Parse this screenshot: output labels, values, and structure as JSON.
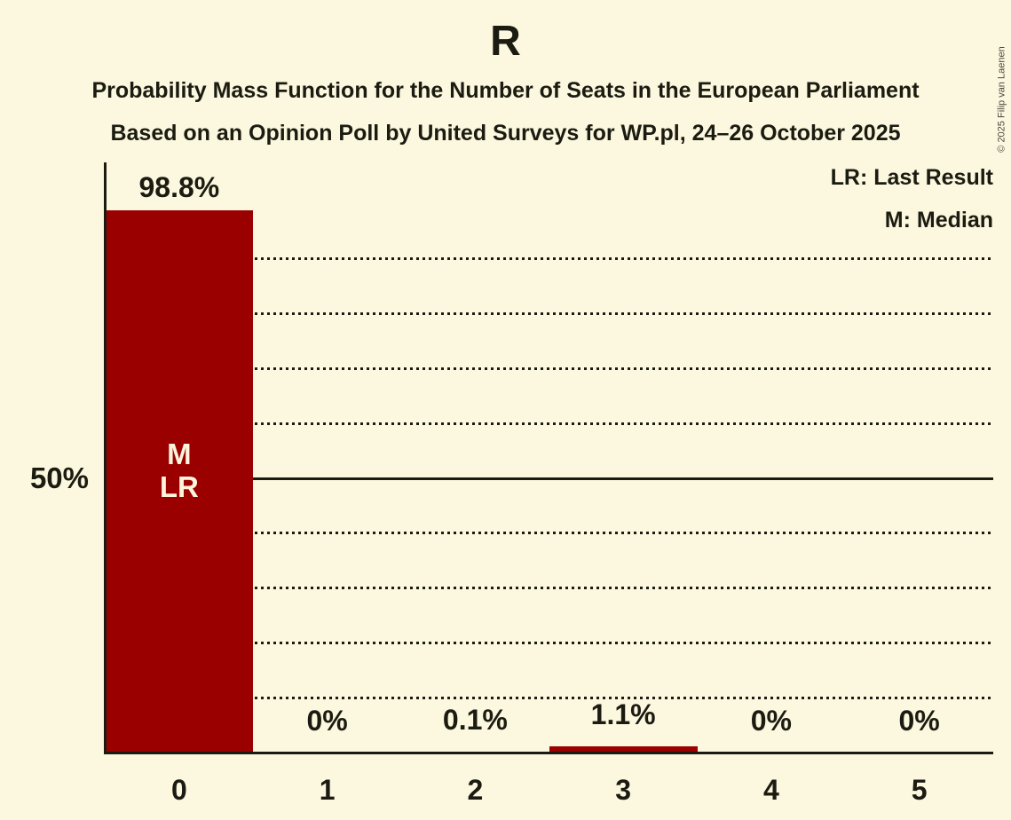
{
  "header": {
    "title": "R",
    "subtitle1": "Probability Mass Function for the Number of Seats in the European Parliament",
    "subtitle2": "Based on an Opinion Poll by United Surveys for WP.pl, 24–26 October 2025"
  },
  "legend": {
    "lr_label": "LR: Last Result",
    "m_label": "M: Median"
  },
  "copyright": {
    "text": "© 2025 Filip van Laenen"
  },
  "chart_data": {
    "type": "bar",
    "title": "R",
    "xlabel": "",
    "ylabel": "",
    "categories": [
      "0",
      "1",
      "2",
      "3",
      "4",
      "5"
    ],
    "values": [
      98.8,
      0,
      0.1,
      1.1,
      0,
      0
    ],
    "value_labels": [
      "98.8%",
      "0%",
      "0.1%",
      "1.1%",
      "0%",
      "0%"
    ],
    "ylim": [
      0,
      100
    ],
    "y_tick": {
      "pct": 50,
      "label": "50%"
    },
    "gridlines_pct": [
      10,
      20,
      30,
      40,
      60,
      70,
      80,
      90
    ],
    "solid_gridline_pct": 50,
    "grid_style": "dotted horizontal, solid line at 50%",
    "legend_position": "top-right",
    "annotations": [
      {
        "category": "0",
        "lines": [
          "M",
          "LR"
        ],
        "meaning": "Median and Last Result at 0 seats"
      }
    ],
    "colors": {
      "bar": "#9A0000",
      "background": "#FCF8DF",
      "text": "#1B1B11",
      "bar_label": "#FCF4DC"
    }
  }
}
